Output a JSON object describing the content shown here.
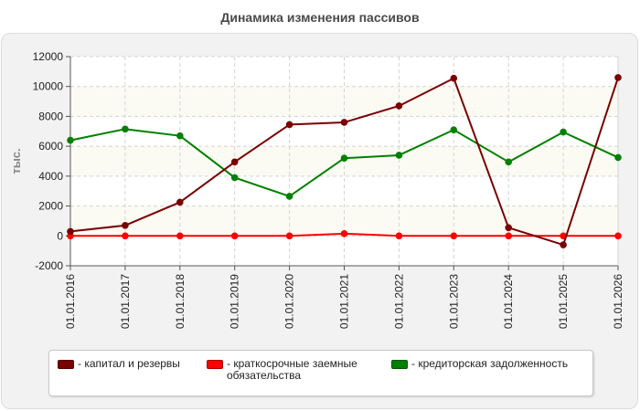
{
  "title": "Динамика изменения пассивов",
  "chart_data": {
    "type": "line",
    "title": "Динамика изменения пассивов",
    "ylabel": "тыс.",
    "xlabel": "",
    "categories": [
      "01.01.2016",
      "01.01.2017",
      "01.01.2018",
      "01.01.2019",
      "01.01.2020",
      "01.01.2021",
      "01.01.2022",
      "01.01.2023",
      "01.01.2024",
      "01.01.2025",
      "01.01.2026"
    ],
    "ylim": [
      -2000,
      12000
    ],
    "yticks": [
      -2000,
      0,
      2000,
      4000,
      6000,
      8000,
      10000,
      12000
    ],
    "grid": true,
    "legend_position": "bottom",
    "series": [
      {
        "name": "- капитал и резервы",
        "color": "#7a0000",
        "values": [
          300,
          700,
          2250,
          4950,
          7450,
          7600,
          8700,
          10550,
          550,
          -600,
          10600
        ]
      },
      {
        "name": "- краткосрочные заемные\nобязательства",
        "color": "#ff0000",
        "values": [
          0,
          0,
          0,
          0,
          0,
          150,
          0,
          0,
          0,
          0,
          0
        ]
      },
      {
        "name": "- кредиторская задолженность",
        "color": "#008000",
        "values": [
          6400,
          7150,
          6700,
          3900,
          2650,
          5200,
          5400,
          7100,
          4950,
          6950,
          5250
        ]
      }
    ]
  }
}
